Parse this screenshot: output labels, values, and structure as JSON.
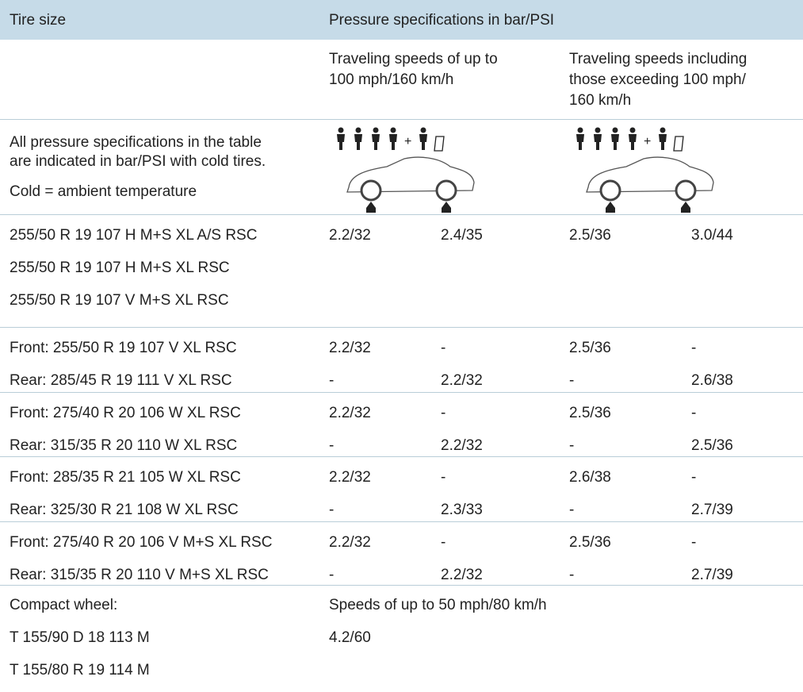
{
  "header": {
    "tire_size": "Tire size",
    "pressure": "Pressure specifications in bar/PSI"
  },
  "subheader": {
    "up_to_100": [
      "Traveling speeds of up to",
      "100 mph/160 km/h"
    ],
    "exceeding_100": [
      "Traveling speeds including",
      "those exceeding 100 mph/",
      "160 km/h"
    ]
  },
  "notes": [
    "All pressure specifications in the table",
    "are indicated in bar/PSI with cold tires.",
    "Cold = ambient temperature"
  ],
  "rows": [
    {
      "tires": [
        "255/50 R 19 107 H M+S XL A/S RSC",
        "255/50 R 19 107 H M+S XL RSC",
        "255/50 R 19 107 V M+S XL RSC"
      ],
      "values": [
        [
          "2.2/32",
          "2.4/35",
          "2.5/36",
          "3.0/44"
        ]
      ]
    },
    {
      "tires": [
        "Front: 255/50 R 19 107 V XL RSC",
        "Rear: 285/45 R 19 111 V XL RSC"
      ],
      "values": [
        [
          "2.2/32",
          "-",
          "2.5/36",
          "-"
        ],
        [
          "-",
          "2.2/32",
          "-",
          "2.6/38"
        ]
      ]
    },
    {
      "tires": [
        "Front: 275/40 R 20 106 W XL RSC",
        "Rear: 315/35 R 20 110 W XL RSC"
      ],
      "values": [
        [
          "2.2/32",
          "-",
          "2.5/36",
          "-"
        ],
        [
          "-",
          "2.2/32",
          "-",
          "2.5/36"
        ]
      ]
    },
    {
      "tires": [
        "Front: 285/35 R 21 105 W XL RSC",
        "Rear: 325/30 R 21 108 W XL RSC"
      ],
      "values": [
        [
          "2.2/32",
          "-",
          "2.6/38",
          "-"
        ],
        [
          "-",
          "2.3/33",
          "-",
          "2.7/39"
        ]
      ]
    },
    {
      "tires": [
        "Front: 275/40 R 20 106 V M+S XL RSC",
        "Rear: 315/35 R 20 110 V M+S XL RSC"
      ],
      "values": [
        [
          "2.2/32",
          "-",
          "2.5/36",
          "-"
        ],
        [
          "-",
          "2.2/32",
          "-",
          "2.7/39"
        ]
      ]
    }
  ],
  "compact": {
    "tires": [
      "Compact wheel:",
      "T 155/90 D 18 113 M",
      "T 155/80 R 19 114 M"
    ],
    "speed": "Speeds of up to 50 mph/80 km/h",
    "value": "4.2/60"
  }
}
